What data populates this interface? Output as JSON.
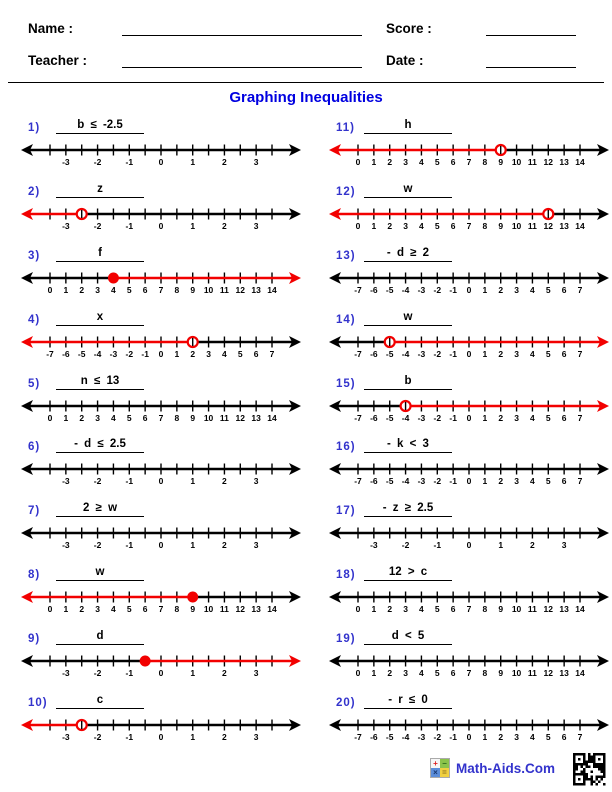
{
  "header": {
    "name_label": "Name :",
    "teacher_label": "Teacher :",
    "score_label": "Score :",
    "date_label": "Date :"
  },
  "title": "Graphing Inequalities",
  "footer": {
    "brand": "Math-Aids.Com"
  },
  "colors": {
    "title_blue": "#0000e0",
    "number_blue": "#3333cc",
    "graph_red": "#f20000",
    "line_black": "#000000"
  },
  "scales": {
    "halves": {
      "ticks": [
        -3.5,
        -3,
        -2.5,
        -2,
        -1.5,
        -1,
        -0.5,
        0,
        0.5,
        1,
        1.5,
        2,
        2.5,
        3,
        3.5
      ],
      "labeled": [
        -3,
        -2,
        -1,
        0,
        1,
        2,
        3
      ]
    },
    "zero14": {
      "ticks": [
        0,
        1,
        2,
        3,
        4,
        5,
        6,
        7,
        8,
        9,
        10,
        11,
        12,
        13,
        14
      ],
      "labeled": [
        0,
        1,
        2,
        3,
        4,
        5,
        6,
        7,
        8,
        9,
        10,
        11,
        12,
        13,
        14
      ]
    },
    "neg7to7": {
      "ticks": [
        -7,
        -6,
        -5,
        -4,
        -3,
        -2,
        -1,
        0,
        1,
        2,
        3,
        4,
        5,
        6,
        7
      ],
      "labeled": [
        -7,
        -6,
        -5,
        -4,
        -3,
        -2,
        -1,
        0,
        1,
        2,
        3,
        4,
        5,
        6,
        7
      ]
    }
  },
  "problems": [
    {
      "num": "1)",
      "label": "b ≤ -2.5",
      "scale": "halves",
      "graph": null
    },
    {
      "num": "2)",
      "label": "z",
      "scale": "halves",
      "graph": {
        "point": -2.5,
        "circle": "open",
        "ray": "left"
      }
    },
    {
      "num": "3)",
      "label": "f",
      "scale": "zero14",
      "graph": {
        "point": 4,
        "circle": "closed",
        "ray": "right"
      }
    },
    {
      "num": "4)",
      "label": "x",
      "scale": "neg7to7",
      "graph": {
        "point": 2,
        "circle": "open",
        "ray": "left"
      }
    },
    {
      "num": "5)",
      "label": "n ≤ 13",
      "scale": "zero14",
      "graph": null
    },
    {
      "num": "6)",
      "label": "- d ≤ 2.5",
      "scale": "halves",
      "graph": null
    },
    {
      "num": "7)",
      "label": "2 ≥ w",
      "scale": "halves",
      "graph": null
    },
    {
      "num": "8)",
      "label": "w",
      "scale": "zero14",
      "graph": {
        "point": 9,
        "circle": "closed",
        "ray": "left"
      }
    },
    {
      "num": "9)",
      "label": "d",
      "scale": "halves",
      "graph": {
        "point": -0.5,
        "circle": "closed",
        "ray": "right"
      }
    },
    {
      "num": "10)",
      "label": "c",
      "scale": "halves",
      "graph": {
        "point": -2.5,
        "circle": "open",
        "ray": "left"
      }
    },
    {
      "num": "11)",
      "label": "h",
      "scale": "zero14",
      "graph": {
        "point": 9,
        "circle": "open",
        "ray": "left"
      }
    },
    {
      "num": "12)",
      "label": "w",
      "scale": "zero14",
      "graph": {
        "point": 12,
        "circle": "open",
        "ray": "left"
      }
    },
    {
      "num": "13)",
      "label": "- d ≥ 2",
      "scale": "neg7to7",
      "graph": null
    },
    {
      "num": "14)",
      "label": "w",
      "scale": "neg7to7",
      "graph": {
        "point": -5,
        "circle": "open",
        "ray": "right"
      }
    },
    {
      "num": "15)",
      "label": "b",
      "scale": "neg7to7",
      "graph": {
        "point": -4,
        "circle": "open",
        "ray": "right"
      }
    },
    {
      "num": "16)",
      "label": "- k < 3",
      "scale": "neg7to7",
      "graph": null
    },
    {
      "num": "17)",
      "label": "- z ≥ 2.5",
      "scale": "halves",
      "graph": null
    },
    {
      "num": "18)",
      "label": "12 > c",
      "scale": "zero14",
      "graph": null
    },
    {
      "num": "19)",
      "label": "d < 5",
      "scale": "zero14",
      "graph": null
    },
    {
      "num": "20)",
      "label": "- r ≤ 0",
      "scale": "neg7to7",
      "graph": null
    }
  ]
}
